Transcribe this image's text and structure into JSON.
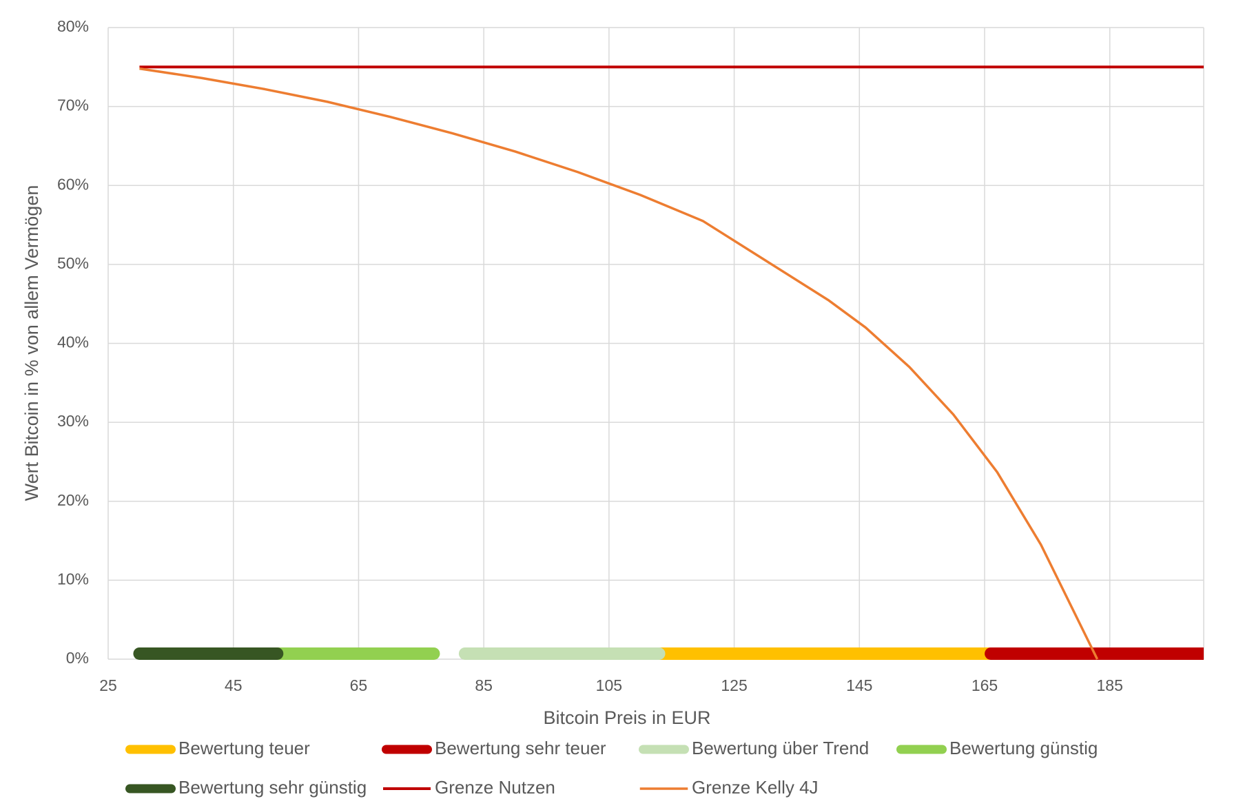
{
  "chart_data": {
    "type": "line",
    "x_label": "Bitcoin Preis in EUR",
    "y_label": "Wert Bitcoin in % von allem Vermögen",
    "xlim": [
      25,
      200
    ],
    "xticks": [
      25,
      45,
      65,
      85,
      105,
      125,
      145,
      165,
      185
    ],
    "ylim": [
      0,
      80
    ],
    "yticks": [
      {
        "value": 0,
        "label": "0%"
      },
      {
        "value": 10,
        "label": "10%"
      },
      {
        "value": 20,
        "label": "20%"
      },
      {
        "value": 30,
        "label": "30%"
      },
      {
        "value": 40,
        "label": "40%"
      },
      {
        "value": 50,
        "label": "50%"
      },
      {
        "value": 60,
        "label": "60%"
      },
      {
        "value": 70,
        "label": "70%"
      },
      {
        "value": 80,
        "label": "80%"
      }
    ],
    "grid": true,
    "legend": "bottom",
    "series": [
      {
        "name": "Bewertung teuer",
        "color": "#FFC000",
        "x": [
          113,
          166
        ],
        "values": [
          0.7,
          0.7
        ]
      },
      {
        "name": "Bewertung sehr teuer",
        "color": "#C00000",
        "x": [
          166,
          200
        ],
        "values": [
          0.7,
          0.7
        ]
      },
      {
        "name": "Bewertung über Trend",
        "color": "#C5E0B4",
        "x": [
          82,
          113
        ],
        "values": [
          0.7,
          0.7
        ]
      },
      {
        "name": "Bewertung günstig",
        "color": "#92D050",
        "x": [
          52,
          77
        ],
        "values": [
          0.7,
          0.7
        ]
      },
      {
        "name": "Bewertung sehr günstig",
        "color": "#375623",
        "x": [
          30,
          52
        ],
        "values": [
          0.7,
          0.7
        ]
      },
      {
        "name": "Grenze Nutzen",
        "color": "#C00000",
        "x": [
          30,
          200
        ],
        "values": [
          75,
          75
        ]
      },
      {
        "name": "Grenze Kelly 4J",
        "color": "#ED7D31",
        "x": [
          30,
          40,
          50,
          60,
          70,
          80,
          90,
          100,
          110,
          120,
          130,
          140,
          146,
          153,
          160,
          167,
          174,
          183
        ],
        "values": [
          74.8,
          73.6,
          72.2,
          70.6,
          68.7,
          66.6,
          64.3,
          61.7,
          58.8,
          55.5,
          50.5,
          45.5,
          42,
          37,
          31,
          23.7,
          14.5,
          0
        ]
      }
    ]
  }
}
